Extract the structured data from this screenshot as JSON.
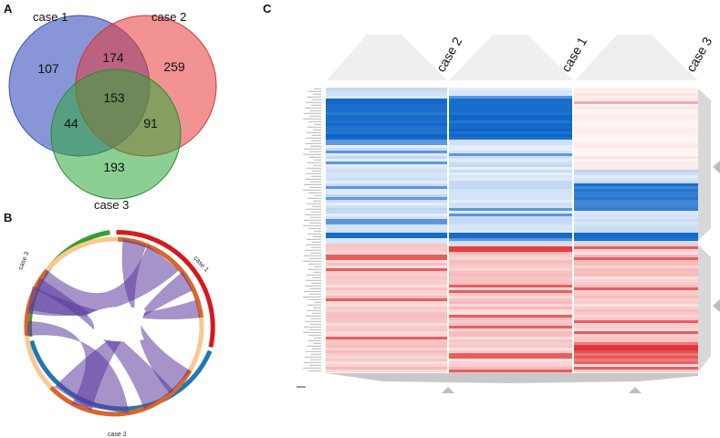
{
  "panels": {
    "a": {
      "letter": "A"
    },
    "b": {
      "letter": "B"
    },
    "c": {
      "letter": "C"
    }
  },
  "venn": {
    "sets": [
      {
        "name": "case 1",
        "color": "#3f55c0"
      },
      {
        "name": "case 2",
        "color": "#e8393b"
      },
      {
        "name": "case 3",
        "color": "#2ea83a"
      }
    ],
    "regions": {
      "only_case1": "107",
      "only_case2": "259",
      "only_case3": "193",
      "case1_case2": "174",
      "case1_case3": "44",
      "case2_case3": "91",
      "all_three": "153"
    }
  },
  "circos": {
    "labels": {
      "case1": "case 1",
      "case2": "case 2",
      "case3": "case 3"
    },
    "colors": {
      "case1": "#d7191c",
      "case2": "#1f78b4",
      "case3": "#33a02c",
      "inner_light": "#f9c891",
      "inner_dark": "#d9662b",
      "link": "#5b3a9e"
    }
  },
  "heatmap": {
    "column_labels": [
      "case 2",
      "case 1",
      "case 3"
    ],
    "colors": {
      "low": "#0a64c8",
      "high": "#dc1e1e",
      "mid": "#f4f6ff"
    }
  }
}
